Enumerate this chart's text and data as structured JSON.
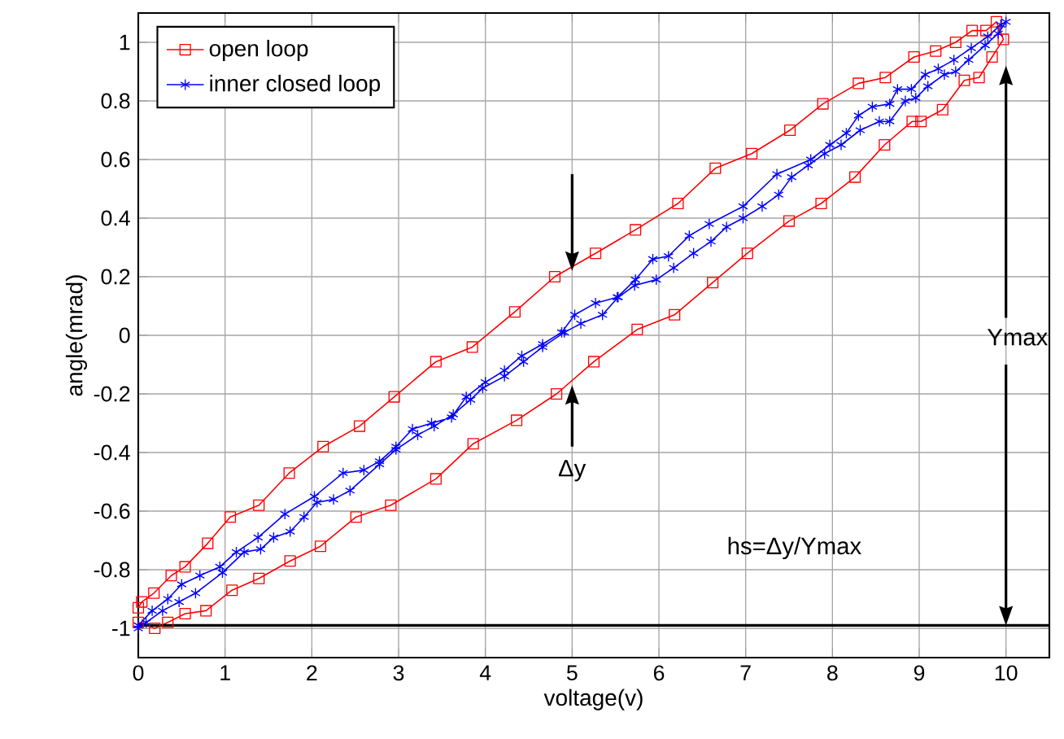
{
  "chart_data": {
    "type": "line",
    "xlabel": "voltage(v)",
    "ylabel": "angle(mrad)",
    "xlim": [
      0,
      10.5
    ],
    "ylim": [
      -1.1,
      1.1
    ],
    "xticks": [
      0,
      1,
      2,
      3,
      4,
      5,
      6,
      7,
      8,
      9,
      10
    ],
    "yticks": [
      -1,
      -0.8,
      -0.6,
      -0.4,
      -0.2,
      0,
      0.2,
      0.4,
      0.6,
      0.8,
      1
    ],
    "grid": true,
    "legend": "top left",
    "line_style": "solid",
    "series": [
      {
        "name": "open loop",
        "color": "#ff0000",
        "marker": "square",
        "x": [
          0,
          0.04,
          0.18,
          0.38,
          0.54,
          0.8,
          1.06,
          1.39,
          1.74,
          2.13,
          2.55,
          2.95,
          3.43,
          3.85,
          4.34,
          4.8,
          5.27,
          5.73,
          6.22,
          6.65,
          7.07,
          7.51,
          7.89,
          8.3,
          8.61,
          8.94,
          9.19,
          9.42,
          9.61,
          9.77,
          9.89,
          9.97,
          9.84,
          9.69,
          9.52,
          9.27,
          9.02,
          8.92,
          8.6,
          8.26,
          7.87,
          7.5,
          7.02,
          6.62,
          6.18,
          5.75,
          5.25,
          4.82,
          4.36,
          3.86,
          3.43,
          2.91,
          2.51,
          2.1,
          1.75,
          1.39,
          1.08,
          0.78,
          0.54,
          0.34,
          0.19,
          0
        ],
        "values": [
          -0.93,
          -0.91,
          -0.88,
          -0.82,
          -0.79,
          -0.71,
          -0.62,
          -0.58,
          -0.47,
          -0.38,
          -0.31,
          -0.21,
          -0.09,
          -0.04,
          0.08,
          0.2,
          0.28,
          0.36,
          0.45,
          0.57,
          0.62,
          0.7,
          0.79,
          0.86,
          0.88,
          0.95,
          0.97,
          1.0,
          1.04,
          1.04,
          1.07,
          1.01,
          0.95,
          0.88,
          0.87,
          0.77,
          0.73,
          0.73,
          0.65,
          0.54,
          0.45,
          0.39,
          0.28,
          0.18,
          0.07,
          0.02,
          -0.09,
          -0.2,
          -0.29,
          -0.37,
          -0.49,
          -0.58,
          -0.62,
          -0.72,
          -0.77,
          -0.83,
          -0.87,
          -0.94,
          -0.95,
          -0.98,
          -1.0,
          -0.98
        ]
      },
      {
        "name": "inner closed loop",
        "color": "#0000ff",
        "marker": "cross",
        "x": [
          0,
          0.16,
          0.34,
          0.5,
          0.71,
          0.94,
          1.13,
          1.38,
          1.69,
          2.03,
          2.36,
          2.6,
          2.78,
          2.97,
          3.16,
          3.38,
          3.61,
          3.78,
          4.0,
          4.22,
          4.42,
          4.66,
          4.88,
          5.03,
          5.27,
          5.52,
          5.73,
          5.93,
          6.11,
          6.35,
          6.58,
          6.97,
          7.36,
          7.75,
          7.97,
          8.16,
          8.3,
          8.46,
          8.66,
          8.75,
          8.91,
          9.07,
          9.22,
          9.4,
          9.6,
          9.79,
          9.94,
          10.0,
          9.91,
          9.76,
          9.57,
          9.42,
          9.29,
          9.1,
          8.96,
          8.84,
          8.66,
          8.54,
          8.32,
          8.1,
          7.91,
          7.72,
          7.53,
          7.38,
          7.19,
          6.97,
          6.78,
          6.6,
          6.4,
          6.17,
          5.97,
          5.72,
          5.53,
          5.35,
          5.1,
          4.91,
          4.66,
          4.44,
          4.22,
          3.97,
          3.83,
          3.63,
          3.41,
          3.22,
          2.97,
          2.78,
          2.44,
          2.25,
          2.06,
          1.91,
          1.75,
          1.56,
          1.41,
          1.22,
          0.97,
          0.66,
          0.47,
          0.28,
          0.09,
          0
        ],
        "values": [
          -0.99,
          -0.94,
          -0.9,
          -0.85,
          -0.82,
          -0.79,
          -0.74,
          -0.69,
          -0.61,
          -0.55,
          -0.47,
          -0.46,
          -0.43,
          -0.38,
          -0.32,
          -0.3,
          -0.28,
          -0.21,
          -0.16,
          -0.12,
          -0.07,
          -0.03,
          0.01,
          0.07,
          0.11,
          0.13,
          0.19,
          0.26,
          0.27,
          0.34,
          0.38,
          0.44,
          0.55,
          0.6,
          0.65,
          0.69,
          0.75,
          0.78,
          0.79,
          0.84,
          0.84,
          0.89,
          0.91,
          0.94,
          0.98,
          1.02,
          1.06,
          1.07,
          1.03,
          0.99,
          0.94,
          0.9,
          0.89,
          0.85,
          0.81,
          0.8,
          0.73,
          0.73,
          0.7,
          0.65,
          0.62,
          0.58,
          0.54,
          0.48,
          0.44,
          0.4,
          0.37,
          0.32,
          0.28,
          0.23,
          0.19,
          0.17,
          0.13,
          0.07,
          0.04,
          0.01,
          -0.04,
          -0.09,
          -0.14,
          -0.18,
          -0.22,
          -0.27,
          -0.31,
          -0.34,
          -0.39,
          -0.44,
          -0.53,
          -0.56,
          -0.57,
          -0.62,
          -0.67,
          -0.69,
          -0.73,
          -0.74,
          -0.81,
          -0.88,
          -0.91,
          -0.94,
          -0.98,
          -1.0
        ]
      }
    ],
    "ref_lines": [
      {
        "axis": "y",
        "value": -0.99,
        "color": "#000000"
      }
    ],
    "annotations": [
      "Δy",
      "Ymax",
      "hs=Δy/Ymax"
    ]
  }
}
